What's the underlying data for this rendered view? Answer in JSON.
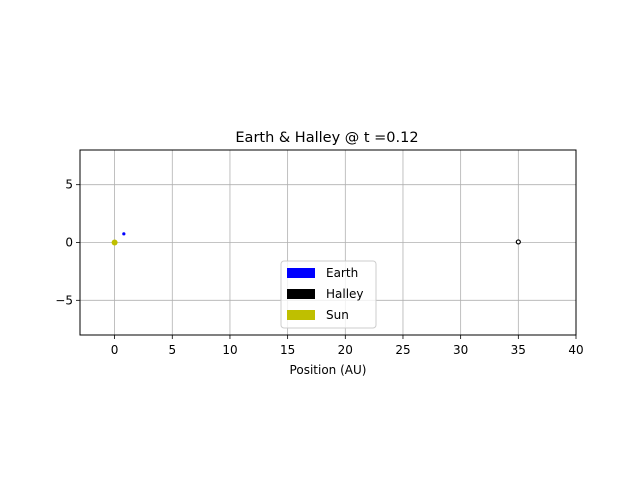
{
  "chart_data": {
    "type": "scatter",
    "title": "Earth & Halley @ t =0.12",
    "xlabel": "Position (AU)",
    "ylabel": "",
    "xlim": [
      -3,
      40
    ],
    "ylim": [
      -8,
      8
    ],
    "xticks": [
      0,
      5,
      10,
      15,
      20,
      25,
      30,
      35,
      40
    ],
    "yticks": [
      -5,
      0,
      5
    ],
    "ytick_labels": [
      "−5",
      "0",
      "5"
    ],
    "grid": true,
    "legend_position": "lower-center",
    "series": [
      {
        "name": "Earth",
        "color": "#0000ff",
        "points": [
          [
            0.8,
            0.75
          ]
        ]
      },
      {
        "name": "Halley",
        "color": "#000000",
        "points": [
          [
            35.0,
            0.05
          ]
        ]
      },
      {
        "name": "Sun",
        "color": "#bfbf00",
        "points": [
          [
            0.0,
            0.0
          ]
        ]
      }
    ]
  }
}
